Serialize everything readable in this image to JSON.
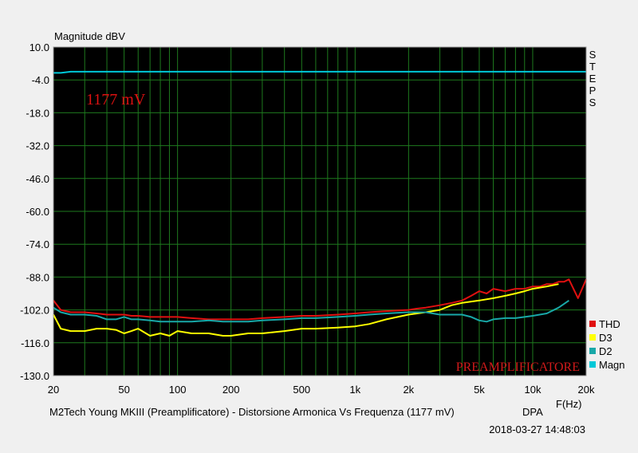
{
  "chart_data": {
    "type": "line",
    "ylabel": "Magnitude dBV",
    "xlabel": "F(Hz)",
    "title": "M2Tech Young MKIII (Preamplificatore) - Distorsione Armonica Vs Frequenza (1177 mV)",
    "brand": "DPA",
    "timestamp": "2018-03-27 14:48:03",
    "annotation": "1177 mV",
    "watermark": "PREAMPLIFICATORE",
    "side_label": [
      "S",
      "T",
      "E",
      "P",
      "S"
    ],
    "x_scale": "log",
    "xlim": [
      20,
      20000
    ],
    "ylim": [
      -130,
      10
    ],
    "yticks": [
      10,
      -4,
      -18,
      -32,
      -46,
      -60,
      -74,
      -88,
      -102,
      -116,
      -130
    ],
    "ytick_labels": [
      "10.0",
      "-4.0",
      "-18.0",
      "-32.0",
      "-46.0",
      "-60.0",
      "-74.0",
      "-88.0",
      "-102.0",
      "-116.0",
      "-130.0"
    ],
    "xticks": [
      20,
      50,
      100,
      200,
      500,
      1000,
      2000,
      5000,
      10000,
      20000
    ],
    "xtick_labels": [
      "20",
      "50",
      "100",
      "200",
      "500",
      "1k",
      "2k",
      "5k",
      "10k",
      "20k"
    ],
    "grid": true,
    "legend_position": "bottom-right",
    "colors": {
      "plot_bg": "#000000",
      "grid": "#1e7a1e",
      "annotation": "#dd1111",
      "watermark": "#d21a1a"
    },
    "series": [
      {
        "name": "THD",
        "color": "#e01010",
        "x": [
          20,
          22,
          25,
          30,
          35,
          40,
          45,
          50,
          55,
          60,
          70,
          80,
          90,
          100,
          120,
          150,
          180,
          200,
          250,
          300,
          400,
          500,
          600,
          800,
          1000,
          1200,
          1500,
          2000,
          2200,
          2500,
          3000,
          3500,
          4000,
          4500,
          5000,
          5500,
          6000,
          7000,
          8000,
          9000,
          10000,
          11000,
          12000,
          13000,
          14000,
          15000,
          16000,
          18000,
          20000
        ],
        "y": [
          -98,
          -102,
          -103,
          -103,
          -103.5,
          -104,
          -104,
          -104,
          -104.5,
          -104.5,
          -105,
          -105,
          -105,
          -105,
          -105.5,
          -106,
          -106,
          -106,
          -106,
          -105.5,
          -105,
          -104.5,
          -104.5,
          -104,
          -103.5,
          -103,
          -102.5,
          -102,
          -101.5,
          -101,
          -100,
          -99,
          -98,
          -96,
          -94,
          -95,
          -93,
          -94,
          -93,
          -93,
          -92,
          -92,
          -91,
          -91,
          -90,
          -90,
          -89,
          -97,
          -89
        ]
      },
      {
        "name": "D3",
        "color": "#ffff00",
        "x": [
          20,
          22,
          25,
          30,
          35,
          40,
          45,
          50,
          55,
          60,
          70,
          80,
          90,
          100,
          120,
          150,
          180,
          200,
          250,
          300,
          400,
          500,
          600,
          800,
          1000,
          1200,
          1500,
          2000,
          2500,
          3000,
          3500,
          4000,
          5000,
          6000,
          7000,
          8000,
          9000,
          10000,
          12000,
          14000
        ],
        "y": [
          -104,
          -110,
          -111,
          -111,
          -110,
          -110,
          -110.5,
          -112,
          -111,
          -110,
          -113,
          -112,
          -113,
          -111,
          -112,
          -112,
          -113,
          -113,
          -112,
          -112,
          -111,
          -110,
          -110,
          -109.5,
          -109,
          -108,
          -106,
          -104,
          -103,
          -102,
          -100,
          -99,
          -98,
          -97,
          -96,
          -95,
          -94,
          -93,
          -92,
          -91
        ]
      },
      {
        "name": "D2",
        "color": "#18a8a8",
        "x": [
          20,
          22,
          25,
          30,
          35,
          40,
          45,
          50,
          55,
          60,
          70,
          80,
          90,
          100,
          120,
          150,
          180,
          200,
          250,
          300,
          400,
          500,
          600,
          800,
          1000,
          1200,
          1500,
          2000,
          2500,
          3000,
          3500,
          4000,
          4500,
          5000,
          5500,
          6000,
          7000,
          8000,
          9000,
          10000,
          12000,
          14000,
          16000
        ],
        "y": [
          -101,
          -103,
          -104,
          -104,
          -104.5,
          -106,
          -106,
          -105,
          -106,
          -106,
          -106.5,
          -107,
          -107,
          -107,
          -107,
          -106.5,
          -107,
          -107,
          -107,
          -106.5,
          -106,
          -105.5,
          -105.5,
          -105,
          -104.5,
          -104,
          -103.5,
          -103,
          -103,
          -104,
          -104,
          -104,
          -105,
          -106.5,
          -107,
          -106,
          -105.5,
          -105.5,
          -105,
          -104.5,
          -103.5,
          -101,
          -98
        ]
      },
      {
        "name": "Magn",
        "color": "#00c8d8",
        "x": [
          20,
          22,
          25,
          50,
          100,
          1000,
          10000,
          20000
        ],
        "y": [
          -1,
          -1,
          -0.5,
          -0.5,
          -0.5,
          -0.5,
          -0.5,
          -0.5
        ]
      }
    ]
  }
}
